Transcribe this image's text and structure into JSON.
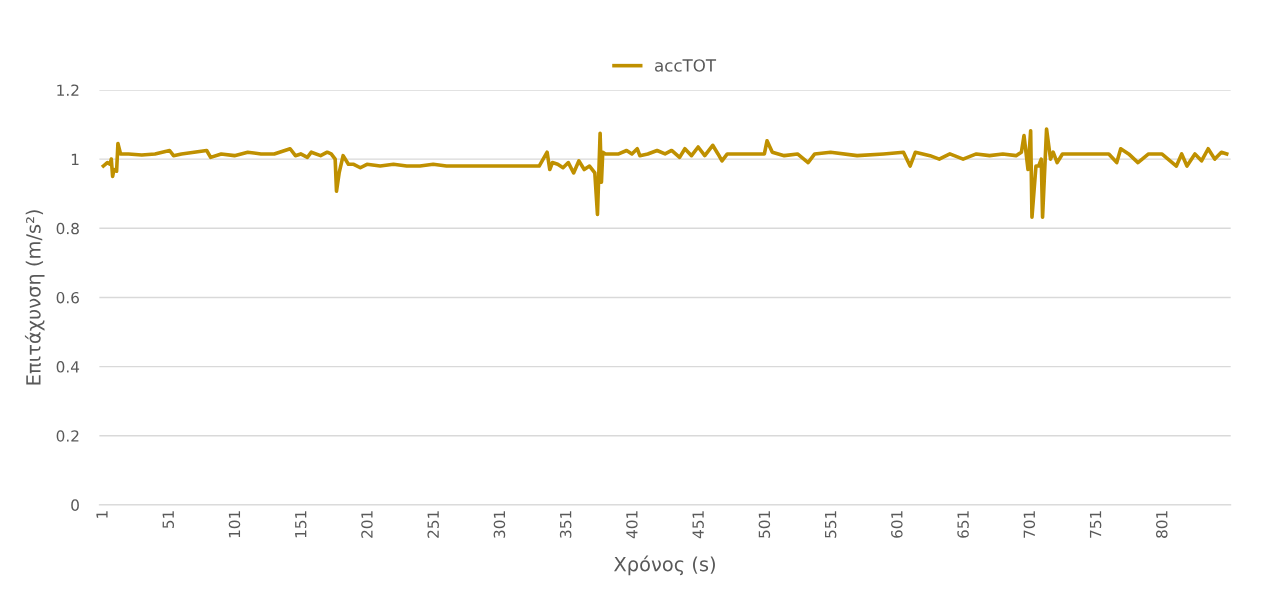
{
  "chart_data": {
    "type": "line",
    "xlabel": "Χρόνος (s)",
    "ylabel": "Επιτάχυνση (m/s²)",
    "series": [
      {
        "name": "accTOT",
        "color": "#bf9000",
        "x": [
          1,
          4,
          6,
          7,
          8,
          9,
          11,
          12,
          14,
          20,
          30,
          40,
          51,
          54,
          60,
          79,
          82,
          90,
          100,
          110,
          120,
          130,
          142,
          146,
          150,
          155,
          158,
          165,
          170,
          173,
          176,
          177,
          179,
          182,
          186,
          190,
          195,
          200,
          210,
          220,
          230,
          240,
          250,
          260,
          270,
          290,
          310,
          330,
          336,
          338,
          340,
          344,
          348,
          352,
          356,
          360,
          364,
          368,
          372,
          374,
          376,
          377,
          378,
          380,
          390,
          396,
          400,
          404,
          406,
          412,
          419,
          425,
          430,
          436,
          440,
          445,
          450,
          455,
          461,
          465,
          468,
          472,
          480,
          490,
          500,
          502,
          506,
          515,
          525,
          533,
          538,
          550,
          570,
          590,
          605,
          610,
          614,
          625,
          632,
          640,
          650,
          660,
          670,
          680,
          690,
          694,
          696,
          699,
          701,
          702,
          705,
          707,
          709,
          710,
          713,
          716,
          718,
          721,
          725,
          740,
          760,
          766,
          769,
          775,
          782,
          790,
          800,
          811,
          815,
          819,
          825,
          830,
          835,
          840,
          845,
          849
        ],
        "values": [
          0.98,
          0.99,
          0.985,
          1.0,
          0.95,
          0.97,
          0.965,
          1.045,
          1.015,
          1.015,
          1.012,
          1.015,
          1.025,
          1.01,
          1.015,
          1.025,
          1.005,
          1.015,
          1.01,
          1.02,
          1.015,
          1.015,
          1.03,
          1.01,
          1.015,
          1.005,
          1.02,
          1.01,
          1.02,
          1.015,
          1.0,
          0.907,
          0.96,
          1.01,
          0.985,
          0.985,
          0.975,
          0.985,
          0.98,
          0.985,
          0.98,
          0.98,
          0.985,
          0.98,
          0.98,
          0.98,
          0.98,
          0.98,
          1.02,
          0.97,
          0.99,
          0.985,
          0.975,
          0.99,
          0.96,
          0.995,
          0.97,
          0.98,
          0.96,
          0.84,
          1.075,
          0.933,
          1.02,
          1.015,
          1.015,
          1.025,
          1.015,
          1.03,
          1.01,
          1.015,
          1.025,
          1.015,
          1.025,
          1.005,
          1.03,
          1.01,
          1.035,
          1.01,
          1.04,
          1.015,
          0.995,
          1.015,
          1.015,
          1.015,
          1.015,
          1.053,
          1.02,
          1.01,
          1.015,
          0.99,
          1.015,
          1.02,
          1.01,
          1.015,
          1.02,
          0.98,
          1.02,
          1.01,
          1.0,
          1.015,
          1.0,
          1.015,
          1.01,
          1.015,
          1.01,
          1.02,
          1.068,
          0.97,
          1.082,
          0.832,
          0.98,
          0.98,
          1.0,
          0.832,
          1.087,
          1.0,
          1.02,
          0.99,
          1.015,
          1.015,
          1.015,
          0.99,
          1.03,
          1.015,
          0.99,
          1.015,
          1.015,
          0.98,
          1.015,
          0.98,
          1.015,
          0.995,
          1.03,
          1.0,
          1.02,
          1.015
        ]
      }
    ],
    "xlim": [
      -2,
      852
    ],
    "xticks": [
      1,
      51,
      101,
      151,
      201,
      251,
      301,
      351,
      401,
      451,
      501,
      551,
      601,
      651,
      701,
      751,
      801
    ],
    "ylim": [
      0,
      1.2
    ],
    "yticks": [
      0,
      0.2,
      0.4,
      0.6,
      0.8,
      1,
      1.2
    ],
    "grid": "y",
    "legend": "top"
  }
}
